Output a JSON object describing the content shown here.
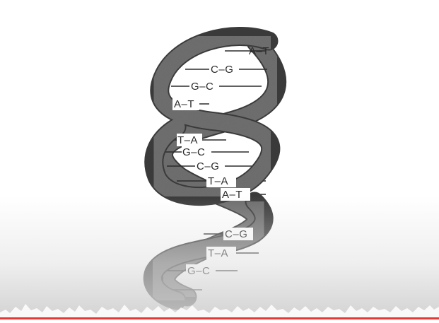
{
  "diagram": {
    "base_pairs": [
      {
        "left": "A",
        "right": "T"
      },
      {
        "left": "C",
        "right": "G"
      },
      {
        "left": "G",
        "right": "C"
      },
      {
        "left": "A",
        "right": "T"
      },
      {
        "left": "T",
        "right": "A"
      },
      {
        "left": "G",
        "right": "C"
      },
      {
        "left": "C",
        "right": "G"
      },
      {
        "left": "T",
        "right": "A"
      },
      {
        "left": "A",
        "right": "T"
      },
      {
        "left": "C",
        "right": "G"
      },
      {
        "left": "T",
        "right": "A"
      },
      {
        "left": "G",
        "right": "C"
      }
    ],
    "strand_color": "#6f6f6f",
    "strand_edge_color": "#3a3a3a",
    "rung_color": "#2b2b2b"
  },
  "player": {
    "progress_color": "#e53935"
  }
}
